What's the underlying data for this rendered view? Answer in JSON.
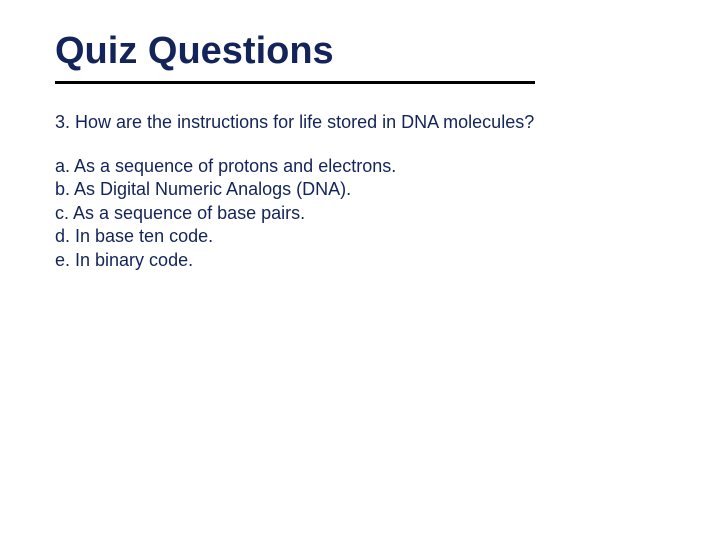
{
  "colors": {
    "title": "#13245a",
    "rule": "#000000",
    "text": "#13245a",
    "background": "#ffffff"
  },
  "title": "Quiz Questions",
  "question": "3. How are the instructions for life stored in DNA molecules?",
  "options": [
    "a. As a sequence of protons and electrons.",
    "b. As Digital Numeric Analogs (DNA).",
    "c. As a sequence of base pairs.",
    "d. In base ten code.",
    "e. In binary code."
  ]
}
